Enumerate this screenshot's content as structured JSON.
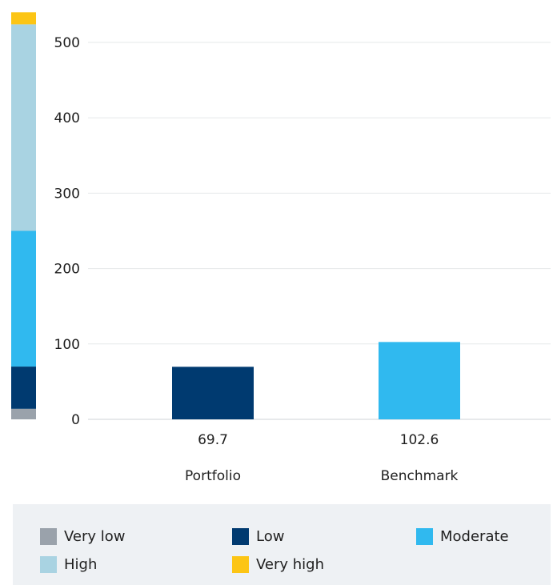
{
  "chart_data": {
    "type": "bar",
    "categories": [
      "Portfolio",
      "Benchmark"
    ],
    "values": [
      69.7,
      102.6
    ],
    "value_labels": [
      "69.7",
      "102.6"
    ],
    "bar_colors": [
      "#003a70",
      "#30b9ef"
    ],
    "ylim": [
      0,
      540
    ],
    "yticks": [
      0,
      100,
      200,
      300,
      400,
      500
    ],
    "grid": true,
    "scale_bands": [
      {
        "name": "Very low",
        "from": 0,
        "to": 14,
        "color": "#9aa2ab"
      },
      {
        "name": "Low",
        "from": 14,
        "to": 70,
        "color": "#003a70"
      },
      {
        "name": "Moderate",
        "from": 70,
        "to": 250,
        "color": "#30b9ef"
      },
      {
        "name": "High",
        "from": 250,
        "to": 524,
        "color": "#a9d3e2"
      },
      {
        "name": "Very high",
        "from": 524,
        "to": 540,
        "color": "#fcc515"
      }
    ],
    "legend": [
      {
        "label": "Very low",
        "color": "#9aa2ab"
      },
      {
        "label": "Low",
        "color": "#003a70"
      },
      {
        "label": "Moderate",
        "color": "#30b9ef"
      },
      {
        "label": "High",
        "color": "#a9d3e2"
      },
      {
        "label": "Very high",
        "color": "#fcc515"
      }
    ],
    "legend_position": "bottom"
  }
}
